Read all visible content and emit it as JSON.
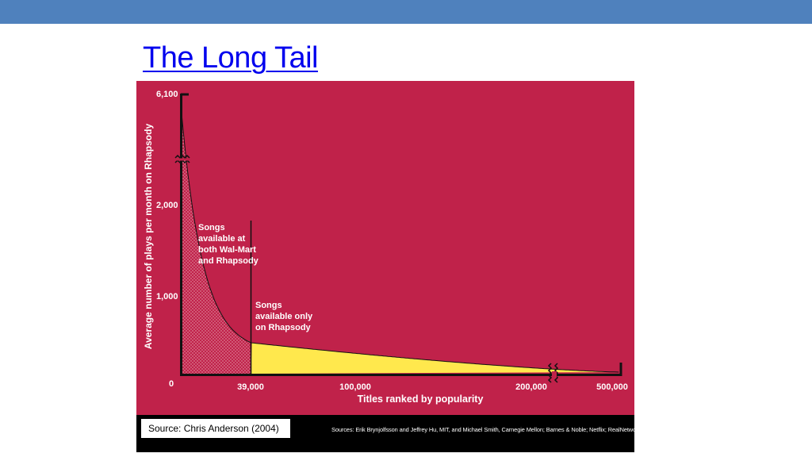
{
  "slide": {
    "title": "The Long Tail"
  },
  "figure": {
    "source_note": "Source: Chris Anderson (2004)",
    "credits": "Sources: Erik Brynjolfsson and Jeffrey Hu, MIT, and Michael Smith, Carnegie Mellon; Barnes & Noble; Netflix; RealNetworks"
  },
  "colors": {
    "background": "#c0224a",
    "head_fill": "#c0224a",
    "tail_fill": "#ffe84d",
    "accent": "#4f81bd"
  },
  "chart_data": {
    "type": "area",
    "xlabel": "Titles ranked by popularity",
    "ylabel": "Average number of plays per month on Rhapsody",
    "y_ticks": [
      "0",
      "1,000",
      "2,000",
      "6,100"
    ],
    "x_ticks": [
      "39,000",
      "100,000",
      "200,000",
      "500,000"
    ],
    "axis_breaks": {
      "y": "between 2,000 and 6,100",
      "x": "between 200,000 and 500,000"
    },
    "regions": [
      {
        "label": "Songs available at both Wal-Mart and Rhapsody",
        "x_range": [
          0,
          39000
        ]
      },
      {
        "label": "Songs available only on Rhapsody",
        "x_range": [
          39000,
          500000
        ]
      }
    ],
    "annotations": [
      {
        "lines": [
          "Songs",
          "available at",
          "both Wal-Mart",
          "and Rhapsody"
        ]
      },
      {
        "lines": [
          "Songs",
          "available only",
          "on Rhapsody"
        ]
      }
    ]
  }
}
